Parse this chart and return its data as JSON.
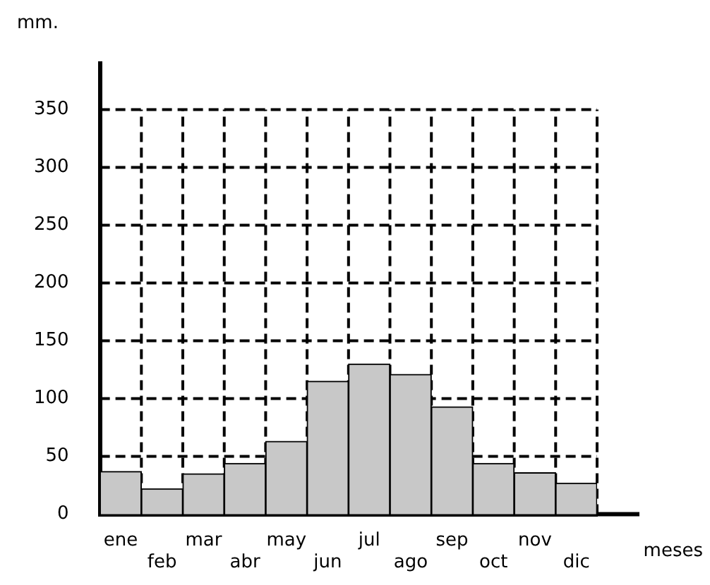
{
  "chart_data": {
    "type": "bar",
    "ylabel": "mm.",
    "xlabel": "meses",
    "categories": [
      "ene",
      "feb",
      "mar",
      "abr",
      "may",
      "jun",
      "jul",
      "ago",
      "sep",
      "oct",
      "nov",
      "dic"
    ],
    "values": [
      37,
      22,
      35,
      44,
      63,
      115,
      130,
      121,
      93,
      44,
      36,
      27
    ],
    "color": "#c8c8c8",
    "ylim": [
      0,
      390
    ],
    "yticks": [
      0,
      50,
      100,
      150,
      200,
      250,
      300,
      350
    ],
    "grid": true
  }
}
